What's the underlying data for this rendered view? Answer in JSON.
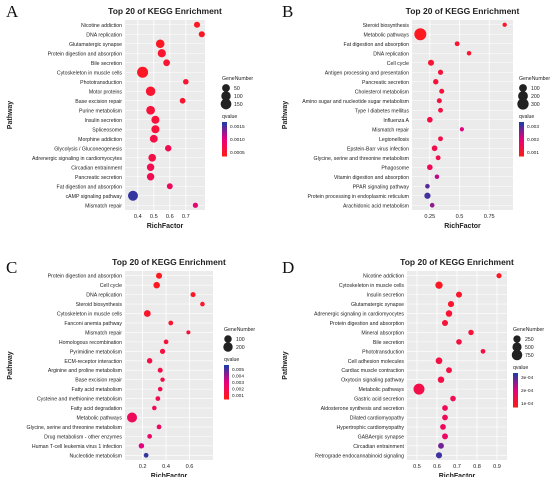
{
  "panels": [
    {
      "letter": "A",
      "title": "Top 20 of KEGG Enrichment",
      "size_legend_title": "GeneNumber",
      "color_legend_title": "qvalue",
      "size_legend_values": [
        50,
        100,
        150
      ],
      "color_legend_ticks": [
        "0.0015",
        "0.0010",
        "0.0005"
      ]
    },
    {
      "letter": "B",
      "title": "Top 20 of KEGG Enrichment",
      "size_legend_title": "GeneNumber",
      "color_legend_title": "qvalue",
      "size_legend_values": [
        100,
        200,
        300
      ],
      "color_legend_ticks": [
        "0.003",
        "0.002",
        "0.001"
      ]
    },
    {
      "letter": "C",
      "title": "Top 20 of KEGG Enrichment",
      "size_legend_title": "GeneNumber",
      "color_legend_title": "qvalue",
      "size_legend_values": [
        100,
        200
      ],
      "color_legend_ticks": [
        "0.005",
        "0.004",
        "0.003",
        "0.002",
        "0.001"
      ]
    },
    {
      "letter": "D",
      "title": "Top 20 of KEGG Enrichment",
      "size_legend_title": "GeneNumber",
      "color_legend_title": "qvalue",
      "size_legend_values": [
        250,
        500,
        750
      ],
      "color_legend_ticks": [
        "3e-04",
        "2e-04",
        "1e-04"
      ]
    }
  ],
  "colors": {
    "low_q": "#ff1a1a",
    "mid_q": "#e6007e",
    "high_q": "#1f3ca6"
  },
  "chart_data": [
    {
      "type": "scatter",
      "title": "Top 20 of KEGG Enrichment",
      "xlabel": "RichFactor",
      "ylabel": "Pathway",
      "xlim": [
        0.32,
        0.82
      ],
      "xticks": [
        0.4,
        0.5,
        0.6,
        0.7
      ],
      "qlim": [
        0,
        0.0018
      ],
      "categories": [
        "Nicotine addiction",
        "DNA replication",
        "Glutamatergic synapse",
        "Protein digestion and absorption",
        "Bile secretion",
        "Cytoskeleton in muscle cells",
        "Phototransduction",
        "Motor proteins",
        "Base excision repair",
        "Purine metabolism",
        "Insulin secretion",
        "Spliceosome",
        "Morphine addiction",
        "Glycolysis / Gluconeogenesis",
        "Adrenergic signaling in cardiomyocytes",
        "Circadian entrainment",
        "Pancreatic secretion",
        "Fat digestion and absorption",
        "cAMP signaling pathway",
        "Mismatch repair"
      ],
      "x": [
        0.77,
        0.8,
        0.54,
        0.55,
        0.58,
        0.43,
        0.7,
        0.48,
        0.68,
        0.48,
        0.51,
        0.51,
        0.5,
        0.59,
        0.49,
        0.48,
        0.48,
        0.6,
        0.37,
        0.76
      ],
      "gene_number": [
        15,
        15,
        70,
        60,
        25,
        165,
        8,
        100,
        10,
        75,
        55,
        55,
        50,
        20,
        45,
        40,
        40,
        12,
        120,
        5
      ],
      "qvalue": [
        0.0001,
        0.0001,
        0.0001,
        0.0002,
        0.0002,
        0.0001,
        0.0002,
        0.0002,
        0.0002,
        0.0003,
        0.0003,
        0.0003,
        0.0004,
        0.0005,
        0.0004,
        0.0005,
        0.0005,
        0.0006,
        0.0017,
        0.0008
      ]
    },
    {
      "type": "scatter",
      "title": "Top 20 of KEGG Enrichment",
      "xlabel": "RichFactor",
      "ylabel": "Pathway",
      "xlim": [
        0.1,
        0.95
      ],
      "xticks": [
        0.25,
        0.5,
        0.75
      ],
      "qlim": [
        0,
        0.0035
      ],
      "categories": [
        "Steroid biosynthesis",
        "Metabolic pathways",
        "Fat digestion and absorption",
        "DNA replication",
        "Cell cycle",
        "Antigen processing and presentation",
        "Pancreatic secretion",
        "Cholesterol metabolism",
        "Amino sugar and nucleotide sugar metabolism",
        "Type I diabetes mellitus",
        "Influenza A",
        "Mismatch repair",
        "Legionellosis",
        "Epstein-Barr virus infection",
        "Glycine, serine and threonine metabolism",
        "Phagosome",
        "Vitamin digestion and absorption",
        "PPAR signaling pathway",
        "Protein processing in endoplasmic reticulum",
        "Arachidonic acid metabolism"
      ],
      "x": [
        0.88,
        0.17,
        0.48,
        0.58,
        0.26,
        0.34,
        0.3,
        0.35,
        0.33,
        0.34,
        0.25,
        0.52,
        0.34,
        0.29,
        0.32,
        0.25,
        0.31,
        0.23,
        0.23,
        0.27
      ],
      "gene_number": [
        8,
        350,
        15,
        10,
        40,
        20,
        25,
        18,
        18,
        15,
        30,
        6,
        15,
        30,
        15,
        30,
        10,
        12,
        45,
        12
      ],
      "qvalue": [
        0.0003,
        0.0001,
        0.0004,
        0.0004,
        0.0005,
        0.0006,
        0.0006,
        0.0006,
        0.0007,
        0.0007,
        0.0008,
        0.0018,
        0.0008,
        0.0009,
        0.0009,
        0.0011,
        0.0021,
        0.003,
        0.0032,
        0.0025
      ]
    },
    {
      "type": "scatter",
      "title": "Top 20 of KEGG Enrichment",
      "xlabel": "RichFactor",
      "ylabel": "Pathway",
      "xlim": [
        0.05,
        0.8
      ],
      "xticks": [
        0.2,
        0.4,
        0.6
      ],
      "qlim": [
        0,
        0.0055
      ],
      "categories": [
        "Protein digestion and absorption",
        "Cell cycle",
        "DNA replication",
        "Steroid biosynthesis",
        "Cytoskeleton in muscle cells",
        "Fanconi anemia pathway",
        "Mismatch repair",
        "Homologous recombination",
        "Pyrimidine metabolism",
        "ECM-receptor interaction",
        "Arginine and proline metabolism",
        "Base excision repair",
        "Fatty acid metabolism",
        "Cysteine and methionine metabolism",
        "Fatty acid degradation",
        "Metabolic pathways",
        "Glycine, serine and threonine metabolism",
        "Drug metabolism - other enzymes",
        "Human T-cell leukemia virus 1 infection",
        "Nucleotide metabolism"
      ],
      "x": [
        0.34,
        0.32,
        0.63,
        0.71,
        0.24,
        0.44,
        0.59,
        0.4,
        0.37,
        0.26,
        0.35,
        0.37,
        0.35,
        0.33,
        0.3,
        0.11,
        0.34,
        0.26,
        0.19,
        0.23
      ],
      "gene_number": [
        45,
        60,
        20,
        12,
        70,
        15,
        5,
        15,
        25,
        30,
        20,
        10,
        12,
        15,
        12,
        240,
        15,
        15,
        30,
        15
      ],
      "qvalue": [
        0.0001,
        0.0002,
        0.0003,
        0.0004,
        0.0005,
        0.0006,
        0.0008,
        0.0009,
        0.001,
        0.0012,
        0.0012,
        0.0013,
        0.0014,
        0.0015,
        0.0016,
        0.0018,
        0.0019,
        0.0021,
        0.0028,
        0.0052
      ]
    },
    {
      "type": "scatter",
      "title": "Top 20 of KEGG Enrichment",
      "xlabel": "RichFactor",
      "ylabel": "Pathway",
      "xlim": [
        0.45,
        0.95
      ],
      "xticks": [
        0.5,
        0.6,
        0.7,
        0.8,
        0.9
      ],
      "qlim": [
        0,
        0.00038
      ],
      "categories": [
        "Nicotine addiction",
        "Cytoskeleton in muscle cells",
        "Insulin secretion",
        "Glutamatergic synapse",
        "Adrenergic signaling in cardiomyocytes",
        "Protein digestion and absorption",
        "Mineral absorption",
        "Bile secretion",
        "Phototransduction",
        "Cell adhesion molecules",
        "Cardiac muscle contraction",
        "Oxytocin signaling pathway",
        "Metabolic pathways",
        "Gastric acid secretion",
        "Aldosterone synthesis and secretion",
        "Dilated cardiomyopathy",
        "Hypertrophic cardiomyopathy",
        "GABAergic synapse",
        "Circadian entrainment",
        "Retrograde endocannabinoid signaling"
      ],
      "x": [
        0.91,
        0.61,
        0.71,
        0.67,
        0.66,
        0.64,
        0.77,
        0.71,
        0.83,
        0.61,
        0.66,
        0.62,
        0.51,
        0.68,
        0.64,
        0.64,
        0.63,
        0.64,
        0.62,
        0.61
      ],
      "gene_number": [
        60,
        250,
        120,
        130,
        160,
        120,
        80,
        90,
        40,
        180,
        110,
        160,
        850,
        90,
        100,
        100,
        100,
        110,
        110,
        130
      ],
      "qvalue": [
        2e-05,
        2e-05,
        3e-05,
        4e-05,
        5e-05,
        6e-05,
        6e-05,
        7e-05,
        7e-05,
        8e-05,
        8e-05,
        9e-05,
        9e-05,
        0.0001,
        0.00011,
        0.00012,
        0.00013,
        0.00014,
        0.0003,
        0.00035
      ]
    }
  ]
}
